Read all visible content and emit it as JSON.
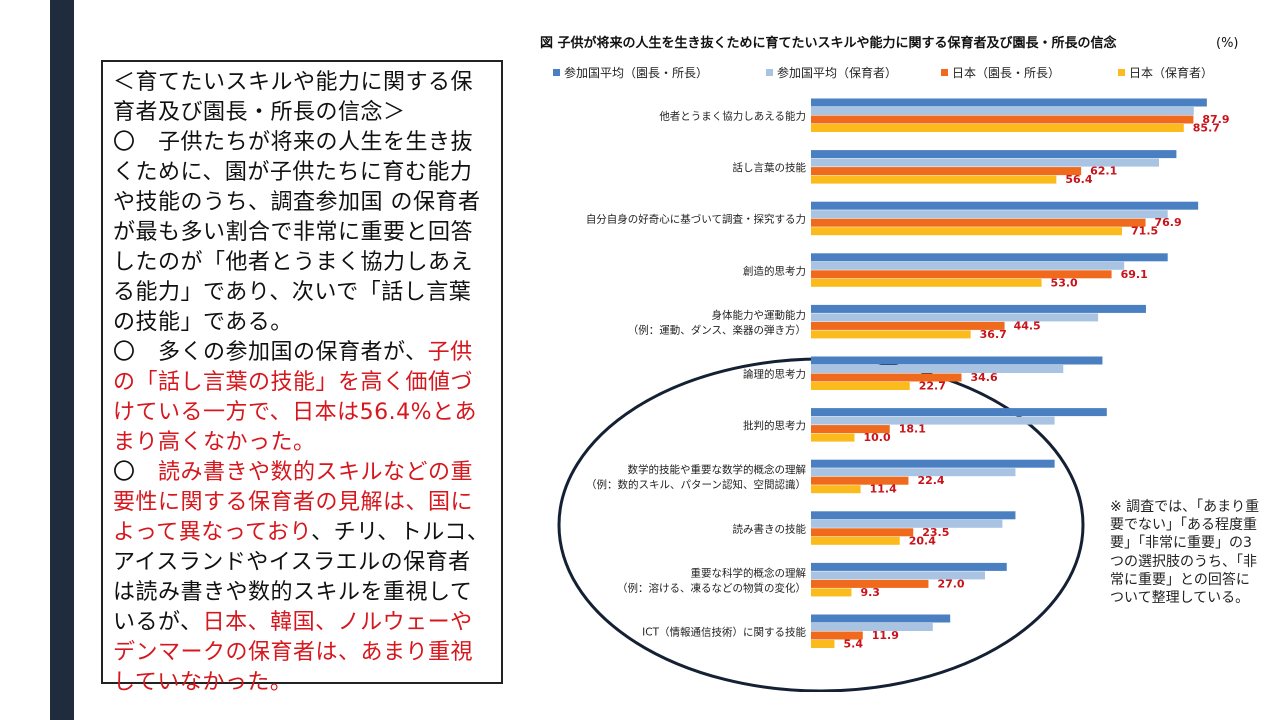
{
  "text_panel": {
    "heading": "＜育てたいスキルや能力に関する保育者及び園長・所長の信念＞",
    "para1": "〇　子供たちが将来の人生を生き抜くために、園が子供たちに育む能力や技能のうち、調査参加国 の保育者が最も多い割合で非常に重要と回答したのが「他者とうまく協力しあえる能力」であり、次いで「話し言葉の技能」である。",
    "para2_prefix": "〇　多くの参加国の保育者が、",
    "para2_red": "子供の「話し言葉の技能」を高く価値づけている一方で、日本は56.4%とあまり高くなかった。",
    "para3_prefix": "〇　",
    "para3_red1": "読み書きや数的スキルなどの重要性に関する保育者の見解は、国によって異なっており",
    "para3_middle": "、チリ、トルコ、アイスランドやイスラエルの保育者は読み書きや数的スキルを重視しているが、",
    "para3_red2": "日本、韓国、ノルウェーやデンマークの保育者は、あまり重視していなかった。"
  },
  "note": "※ 調査では、「あまり重要でない」「ある程度重要」「非常に重要」の3つの選択肢のうち、「非常に重要」との回答について整理している。",
  "chart_data": {
    "type": "bar",
    "orientation": "horizontal",
    "title": "図 子供が将来の人生を生き抜くために育てたいスキルや能力に関する保育者及び園長・所長の信念",
    "title_unit": "(%)",
    "legend_position": "top",
    "categories": [
      [
        "他者とうまく協力しあえる能力"
      ],
      [
        "話し言葉の技能"
      ],
      [
        "自分自身の好奇心に基づいて調査・探究する力"
      ],
      [
        "創造的思考力"
      ],
      [
        "身体能力や運動能力",
        "（例：運動、ダンス、楽器の弾き方）"
      ],
      [
        "論理的思考力"
      ],
      [
        "批判的思考力"
      ],
      [
        "数学的技能や重要な数学的概念の理解",
        "（例：数的スキル、パターン認知、空間認識）"
      ],
      [
        "読み書きの技能"
      ],
      [
        "重要な科学的概念の理解",
        "（例：溶ける、凍るなどの物質の変化）"
      ],
      [
        "ICT（情報通信技術）に関する技能"
      ]
    ],
    "series": [
      {
        "name": "参加国平均（園長・所長）",
        "color": "#4a7fc1",
        "labeled": false,
        "values": [
          91,
          84,
          89,
          82,
          77,
          67,
          68,
          56,
          47,
          45,
          32
        ]
      },
      {
        "name": "参加国平均（保育者）",
        "color": "#a9c3e2",
        "labeled": false,
        "values": [
          88,
          80,
          82,
          72,
          66,
          58,
          56,
          47,
          44,
          40,
          28
        ]
      },
      {
        "name": "日本（園長・所長）",
        "color": "#ef6a1c",
        "labeled": true,
        "values": [
          87.9,
          62.1,
          76.9,
          69.1,
          44.5,
          34.6,
          18.1,
          22.4,
          23.5,
          27.0,
          11.9
        ]
      },
      {
        "name": "日本（保育者）",
        "color": "#fbbb1c",
        "labeled": true,
        "values": [
          85.7,
          56.4,
          71.5,
          53.0,
          36.7,
          22.7,
          10.0,
          11.4,
          20.4,
          9.3,
          5.4
        ]
      }
    ],
    "xlim": [
      0,
      100
    ],
    "value_label_color": "#c8141a",
    "highlight_ellipse_around": [
      "論理的思考力",
      "批判的思考力",
      "数学的技能や重要な数学的概念の理解",
      "読み書きの技能",
      "重要な科学的概念の理解",
      "ICT（情報通信技術）に関する技能"
    ]
  }
}
